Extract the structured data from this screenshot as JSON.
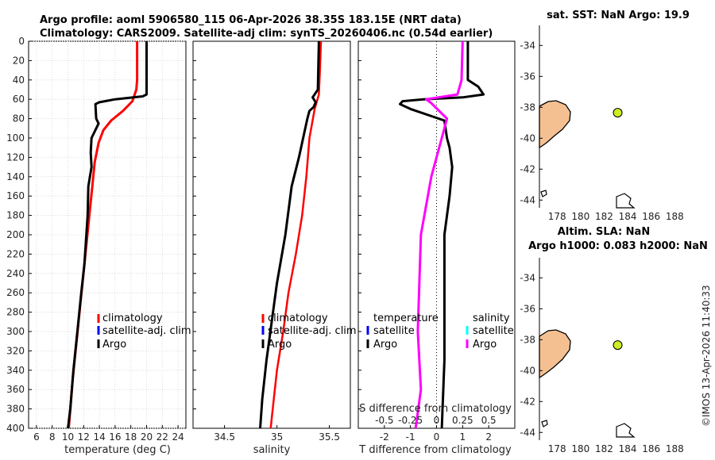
{
  "title": {
    "line1": "Argo profile: aoml 5906580_115 06-Apr-2026 38.35S 183.15E (NRT data)",
    "line2": "Climatology: CARS2009. Satellite-adj clim: synTS_20260406.nc (0.54d earlier)"
  },
  "colors": {
    "climatology": "#ff0000",
    "satellite": "#0000ff",
    "argo": "#000000",
    "salinity_diff": "#ff00ff",
    "salinity_satellite": "#00ffff",
    "land": "#f5c091",
    "float_marker": "#ccee22"
  },
  "depth_axis": {
    "ticks": [
      "0",
      "20",
      "40",
      "60",
      "80",
      "100",
      "120",
      "140",
      "160",
      "180",
      "200",
      "220",
      "240",
      "260",
      "280",
      "300",
      "320",
      "340",
      "360",
      "380",
      "400"
    ]
  },
  "chart_data": [
    {
      "name": "temperature",
      "type": "line",
      "xlabel": "temperature (deg C)",
      "ylabel": "depth",
      "xlim": [
        5,
        25
      ],
      "ylim": [
        400,
        0
      ],
      "xticks": [
        "6",
        "8",
        "10",
        "12",
        "14",
        "16",
        "18",
        "20",
        "22",
        "24"
      ],
      "grid": true,
      "legend": [
        "climatology",
        "satellite-adj. clim",
        "Argo"
      ],
      "series": [
        {
          "name": "climatology",
          "points": [
            [
              18.8,
              0
            ],
            [
              18.8,
              40
            ],
            [
              18.7,
              50
            ],
            [
              18.2,
              62
            ],
            [
              17.0,
              72
            ],
            [
              15.5,
              82
            ],
            [
              14.5,
              92
            ],
            [
              13.9,
              105
            ],
            [
              13.4,
              125
            ],
            [
              13.1,
              150
            ],
            [
              12.6,
              190
            ],
            [
              12.1,
              230
            ],
            [
              11.6,
              270
            ],
            [
              11.1,
              310
            ],
            [
              10.6,
              350
            ],
            [
              10.2,
              390
            ],
            [
              10.1,
              400
            ]
          ]
        },
        {
          "name": "Argo",
          "points": [
            [
              20.0,
              0
            ],
            [
              20.0,
              55
            ],
            [
              19.5,
              57
            ],
            [
              16.0,
              60
            ],
            [
              14.0,
              63
            ],
            [
              13.5,
              65
            ],
            [
              13.6,
              80
            ],
            [
              13.9,
              85
            ],
            [
              13.3,
              95
            ],
            [
              13.0,
              100
            ],
            [
              12.9,
              115
            ],
            [
              13.0,
              130
            ],
            [
              12.6,
              150
            ],
            [
              12.5,
              180
            ],
            [
              12.1,
              230
            ],
            [
              11.7,
              260
            ],
            [
              11.2,
              300
            ],
            [
              10.7,
              340
            ],
            [
              10.3,
              380
            ],
            [
              10.0,
              400
            ]
          ]
        }
      ]
    },
    {
      "name": "salinity",
      "type": "line",
      "xlabel": "salinity",
      "xlim": [
        34.2,
        35.7
      ],
      "ylim": [
        400,
        0
      ],
      "xticks": [
        "34.5",
        "35",
        "35.5"
      ],
      "grid": false,
      "legend": [
        "climatology",
        "satellite-adj. clim",
        "Argo"
      ],
      "series": [
        {
          "name": "climatology",
          "points": [
            [
              35.42,
              0
            ],
            [
              35.41,
              30
            ],
            [
              35.4,
              55
            ],
            [
              35.36,
              70
            ],
            [
              35.31,
              100
            ],
            [
              35.28,
              140
            ],
            [
              35.24,
              180
            ],
            [
              35.18,
              220
            ],
            [
              35.11,
              260
            ],
            [
              35.06,
              300
            ],
            [
              35.0,
              340
            ],
            [
              34.96,
              380
            ],
            [
              34.94,
              400
            ]
          ]
        },
        {
          "name": "Argo",
          "points": [
            [
              35.4,
              0
            ],
            [
              35.39,
              50
            ],
            [
              35.34,
              58
            ],
            [
              35.37,
              63
            ],
            [
              35.35,
              68
            ],
            [
              35.31,
              72
            ],
            [
              35.29,
              80
            ],
            [
              35.26,
              95
            ],
            [
              35.21,
              120
            ],
            [
              35.14,
              150
            ],
            [
              35.08,
              200
            ],
            [
              35.0,
              250
            ],
            [
              34.95,
              290
            ],
            [
              34.9,
              330
            ],
            [
              34.86,
              370
            ],
            [
              34.84,
              400
            ]
          ]
        }
      ]
    },
    {
      "name": "difference",
      "type": "line",
      "xlabel": "T difference from climatology",
      "toplabel": "S difference from climatology",
      "xlim": [
        -3,
        3
      ],
      "ylim": [
        400,
        0
      ],
      "xticks": [
        "-2",
        "-1",
        "0",
        "1",
        "2"
      ],
      "topticks": [
        "-0.5",
        "-0.25",
        "0",
        "0.25",
        "0.5"
      ],
      "legend_temperature": [
        "temperature",
        "satellite",
        "Argo"
      ],
      "legend_salinity": [
        "salinity",
        "satellite",
        "Argo"
      ],
      "series": [
        {
          "name": "T Argo",
          "points": [
            [
              1.2,
              0
            ],
            [
              1.2,
              40
            ],
            [
              1.6,
              47
            ],
            [
              1.8,
              55
            ],
            [
              1.0,
              58
            ],
            [
              -0.5,
              60
            ],
            [
              -1.3,
              62
            ],
            [
              -1.4,
              65
            ],
            [
              -1.0,
              70
            ],
            [
              0.3,
              82
            ],
            [
              0.4,
              100
            ],
            [
              0.5,
              110
            ],
            [
              0.6,
              130
            ],
            [
              0.5,
              160
            ],
            [
              0.3,
              200
            ],
            [
              0.3,
              260
            ],
            [
              0.3,
              330
            ],
            [
              0.2,
              400
            ]
          ]
        },
        {
          "name": "S Argo",
          "points": [
            [
              0.25,
              0
            ],
            [
              0.24,
              40
            ],
            [
              0.2,
              55
            ],
            [
              -0.1,
              60
            ],
            [
              -0.05,
              64
            ],
            [
              0.1,
              80
            ],
            [
              0.05,
              100
            ],
            [
              -0.05,
              140
            ],
            [
              -0.15,
              200
            ],
            [
              -0.18,
              300
            ],
            [
              -0.15,
              360
            ],
            [
              -0.2,
              400
            ]
          ]
        }
      ]
    },
    {
      "name": "sst-map",
      "type": "scatter",
      "title": "sat. SST: NaN Argo: 19.9",
      "xlim": [
        176.5,
        190
      ],
      "ylim": [
        -44.5,
        -32.7
      ],
      "xticks": [
        "178",
        "180",
        "182",
        "184",
        "186",
        "188"
      ],
      "yticks": [
        "-34",
        "-36",
        "-38",
        "-40",
        "-42",
        "-44"
      ],
      "points": [
        [
          183.15,
          -38.35
        ]
      ]
    },
    {
      "name": "sla-map",
      "type": "scatter",
      "title": "Altim. SLA: NaN",
      "subtitle": "Argo h1000: 0.083 h2000: NaN",
      "xlim": [
        176.5,
        190
      ],
      "ylim": [
        -44.5,
        -32.7
      ],
      "xticks": [
        "178",
        "180",
        "182",
        "184",
        "186",
        "188"
      ],
      "yticks": [
        "-34",
        "-36",
        "-38",
        "-40",
        "-42",
        "-44"
      ],
      "points": [
        [
          183.15,
          -38.35
        ]
      ]
    }
  ],
  "credit": "©IMOS 13-Apr-2026 11:40:33"
}
